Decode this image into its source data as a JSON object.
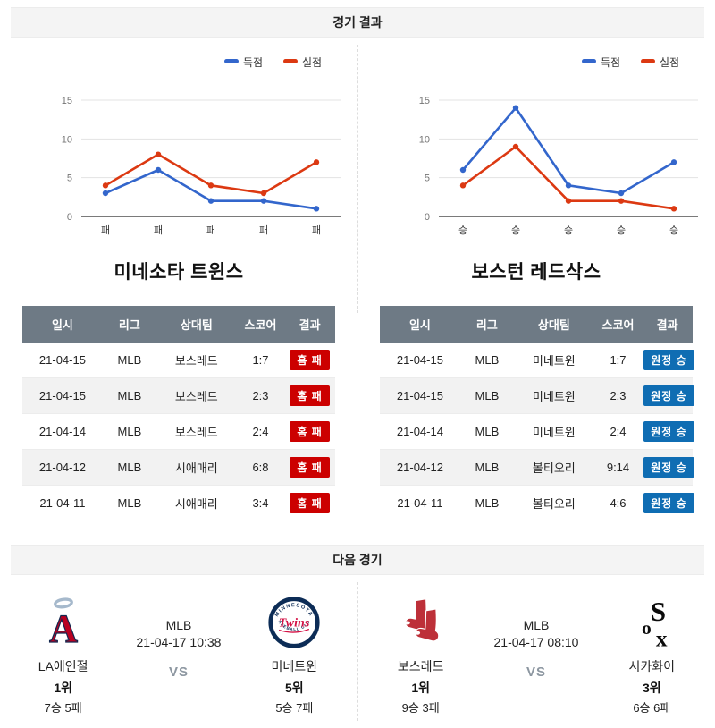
{
  "page": {
    "results_header": "경기 결과",
    "next_header": "다음 경기"
  },
  "colors": {
    "scored_line": "#3366cc",
    "allowed_line": "#dc3912",
    "loss_badge": "#cc0000",
    "win_badge": "#0f6db3",
    "table_header_bg": "#6e7a85",
    "grid_line": "#e3e3e3",
    "axis_line": "#7a7a7a"
  },
  "chart_data": [
    {
      "type": "line",
      "title": "미네소타 트윈스",
      "categories": [
        "패",
        "패",
        "패",
        "패",
        "패"
      ],
      "series": [
        {
          "name": "득점",
          "color": "#3366cc",
          "values": [
            3,
            6,
            2,
            2,
            1
          ]
        },
        {
          "name": "실점",
          "color": "#dc3912",
          "values": [
            4,
            8,
            4,
            3,
            7
          ]
        }
      ],
      "ylim": [
        0,
        15
      ],
      "yticks": [
        0,
        5,
        10,
        15
      ],
      "grid": true,
      "legend_position": "top-right"
    },
    {
      "type": "line",
      "title": "보스턴 레드삭스",
      "categories": [
        "승",
        "승",
        "승",
        "승",
        "승"
      ],
      "series": [
        {
          "name": "득점",
          "color": "#3366cc",
          "values": [
            6,
            14,
            4,
            3,
            7
          ]
        },
        {
          "name": "실점",
          "color": "#dc3912",
          "values": [
            4,
            9,
            2,
            2,
            1
          ]
        }
      ],
      "ylim": [
        0,
        15
      ],
      "yticks": [
        0,
        5,
        10,
        15
      ],
      "grid": true,
      "legend_position": "top-right"
    }
  ],
  "teams": [
    {
      "title": "미네소타 트윈스",
      "columns": [
        "일시",
        "리그",
        "상대팀",
        "스코어",
        "결과"
      ],
      "rows": [
        {
          "date": "21-04-15",
          "league": "MLB",
          "opponent": "보스레드",
          "score": "1:7",
          "result": "홈 패",
          "result_type": "loss"
        },
        {
          "date": "21-04-15",
          "league": "MLB",
          "opponent": "보스레드",
          "score": "2:3",
          "result": "홈 패",
          "result_type": "loss"
        },
        {
          "date": "21-04-14",
          "league": "MLB",
          "opponent": "보스레드",
          "score": "2:4",
          "result": "홈 패",
          "result_type": "loss"
        },
        {
          "date": "21-04-12",
          "league": "MLB",
          "opponent": "시애매리",
          "score": "6:8",
          "result": "홈 패",
          "result_type": "loss"
        },
        {
          "date": "21-04-11",
          "league": "MLB",
          "opponent": "시애매리",
          "score": "3:4",
          "result": "홈 패",
          "result_type": "loss"
        }
      ]
    },
    {
      "title": "보스턴 레드삭스",
      "columns": [
        "일시",
        "리그",
        "상대팀",
        "스코어",
        "결과"
      ],
      "rows": [
        {
          "date": "21-04-15",
          "league": "MLB",
          "opponent": "미네트윈",
          "score": "1:7",
          "result": "원정 승",
          "result_type": "win"
        },
        {
          "date": "21-04-15",
          "league": "MLB",
          "opponent": "미네트윈",
          "score": "2:3",
          "result": "원정 승",
          "result_type": "win"
        },
        {
          "date": "21-04-14",
          "league": "MLB",
          "opponent": "미네트윈",
          "score": "2:4",
          "result": "원정 승",
          "result_type": "win"
        },
        {
          "date": "21-04-12",
          "league": "MLB",
          "opponent": "볼티오리",
          "score": "9:14",
          "result": "원정 승",
          "result_type": "win"
        },
        {
          "date": "21-04-11",
          "league": "MLB",
          "opponent": "볼티오리",
          "score": "4:6",
          "result": "원정 승",
          "result_type": "win"
        }
      ]
    }
  ],
  "next_games": [
    {
      "league": "MLB",
      "datetime": "21-04-17 10:38",
      "vs_label": "VS",
      "home": {
        "name": "LA에인절",
        "rank": "1위",
        "record": "7승 5패",
        "logo": "la-angels-logo"
      },
      "away": {
        "name": "미네트윈",
        "rank": "5위",
        "record": "5승 7패",
        "logo": "minnesota-twins-logo"
      }
    },
    {
      "league": "MLB",
      "datetime": "21-04-17 08:10",
      "vs_label": "VS",
      "home": {
        "name": "보스레드",
        "rank": "1위",
        "record": "9승 3패",
        "logo": "boston-redsox-logo"
      },
      "away": {
        "name": "시카화이",
        "rank": "3위",
        "record": "6승 6패",
        "logo": "chicago-whitesox-logo"
      }
    }
  ]
}
